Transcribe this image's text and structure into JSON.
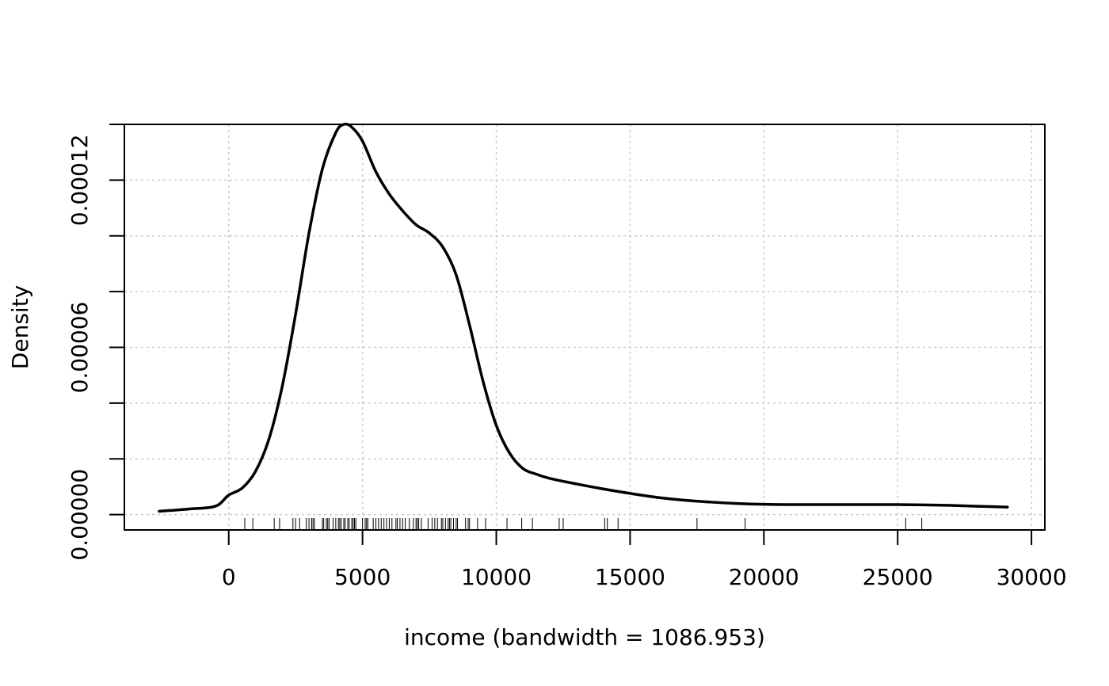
{
  "chart_data": {
    "type": "line",
    "title": "",
    "xlabel": "income (bandwidth = 1086.953)",
    "ylabel": "Density",
    "xlim": [
      -3900,
      30500
    ],
    "ylim": [
      -5.5e-06,
      0.00014
    ],
    "grid": true,
    "x_ticks": [
      0,
      5000,
      10000,
      15000,
      20000,
      25000,
      30000
    ],
    "x_tick_labels": [
      "0",
      "5000",
      "10000",
      "15000",
      "20000",
      "25000",
      "30000"
    ],
    "y_ticks": [
      0,
      2e-05,
      4e-05,
      6e-05,
      8e-05,
      0.0001,
      0.00012,
      0.00014
    ],
    "y_tick_labels": [
      "0.00000",
      "",
      "",
      "0.00006",
      "",
      "",
      "0.00012",
      ""
    ],
    "series": [
      {
        "x": [
          -2600,
          -1500,
          -500,
          0,
          500,
          1000,
          1500,
          2000,
          2500,
          3000,
          3500,
          4000,
          4300,
          4600,
          5000,
          5500,
          6000,
          6500,
          7000,
          7500,
          8000,
          8500,
          9000,
          9500,
          10000,
          10500,
          11000,
          11500,
          12000,
          13000,
          14000,
          15000,
          16000,
          17000,
          18000,
          19000,
          20000,
          21000,
          22000,
          23000,
          24000,
          25000,
          26000,
          27000,
          28000,
          29100
        ],
        "y": [
          1.2e-06,
          2e-06,
          3e-06,
          7e-06,
          9.5e-06,
          1.55e-05,
          2.7e-05,
          4.6e-05,
          7.2e-05,
          0.000101,
          0.000124,
          0.000137,
          0.00014,
          0.000139,
          0.000134,
          0.000123,
          0.000115,
          0.000109,
          0.000104,
          0.000101,
          9.6e-05,
          8.6e-05,
          6.8e-05,
          4.8e-05,
          3.2e-05,
          2.2e-05,
          1.65e-05,
          1.45e-05,
          1.3e-05,
          1.1e-05,
          9.2e-06,
          7.6e-06,
          6.2e-06,
          5.2e-06,
          4.5e-06,
          4e-06,
          3.7e-06,
          3.6e-06,
          3.6e-06,
          3.6e-06,
          3.6e-06,
          3.6e-06,
          3.5e-06,
          3.3e-06,
          3e-06,
          2.7e-06
        ]
      }
    ],
    "rug": [
      600,
      900,
      1700,
      1900,
      2400,
      2500,
      2650,
      2900,
      3000,
      3100,
      3150,
      3200,
      3500,
      3550,
      3650,
      3700,
      3750,
      3900,
      4000,
      4100,
      4150,
      4200,
      4300,
      4350,
      4450,
      4500,
      4600,
      4650,
      4700,
      4750,
      5000,
      5100,
      5150,
      5200,
      5400,
      5500,
      5600,
      5700,
      5800,
      5900,
      6000,
      6100,
      6250,
      6300,
      6400,
      6500,
      6600,
      6750,
      6900,
      7000,
      7050,
      7100,
      7200,
      7450,
      7600,
      7700,
      7800,
      7950,
      8000,
      8100,
      8200,
      8250,
      8300,
      8400,
      8500,
      8550,
      8850,
      8950,
      9000,
      9300,
      9600,
      10400,
      10950,
      11350,
      12350,
      12500,
      14050,
      14150,
      14550,
      17500,
      19300,
      25300,
      25900
    ]
  }
}
